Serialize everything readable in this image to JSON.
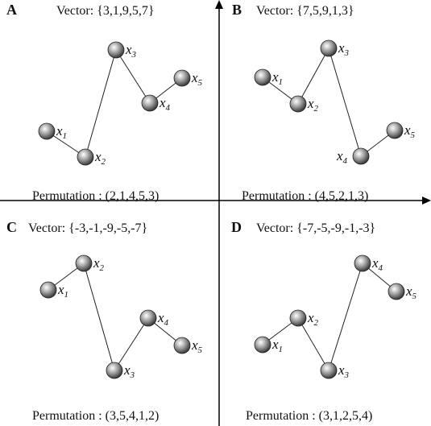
{
  "panels": [
    {
      "letter": "A",
      "vector": "Vector: {3,1,9,5,7}",
      "permutation": "Permutation : (2,1,4,5,3)",
      "nodes": [
        {
          "label": "x",
          "subscript": "1"
        },
        {
          "label": "x",
          "subscript": "2"
        },
        {
          "label": "x",
          "subscript": "3"
        },
        {
          "label": "x",
          "subscript": "4"
        },
        {
          "label": "x",
          "subscript": "5"
        }
      ]
    },
    {
      "letter": "B",
      "vector": "Vector: {7,5,9,1,3}",
      "permutation": "Permutation : (4,5,2,1,3)",
      "nodes": [
        {
          "label": "x",
          "subscript": "1"
        },
        {
          "label": "x",
          "subscript": "2"
        },
        {
          "label": "x",
          "subscript": "3"
        },
        {
          "label": "x",
          "subscript": "4"
        },
        {
          "label": "x",
          "subscript": "5"
        }
      ]
    },
    {
      "letter": "C",
      "vector": "Vector: {-3,-1,-9,-5,-7}",
      "permutation": "Permutation : (3,5,4,1,2)",
      "nodes": [
        {
          "label": "x",
          "subscript": "1"
        },
        {
          "label": "x",
          "subscript": "2"
        },
        {
          "label": "x",
          "subscript": "3"
        },
        {
          "label": "x",
          "subscript": "4"
        },
        {
          "label": "x",
          "subscript": "5"
        }
      ]
    },
    {
      "letter": "D",
      "vector": "Vector: {-7,-5,-9,-1,-3}",
      "permutation": "Permutation : (3,1,2,5,4)",
      "nodes": [
        {
          "label": "x",
          "subscript": "1"
        },
        {
          "label": "x",
          "subscript": "2"
        },
        {
          "label": "x",
          "subscript": "3"
        },
        {
          "label": "x",
          "subscript": "4"
        },
        {
          "label": "x",
          "subscript": "5"
        }
      ]
    }
  ]
}
